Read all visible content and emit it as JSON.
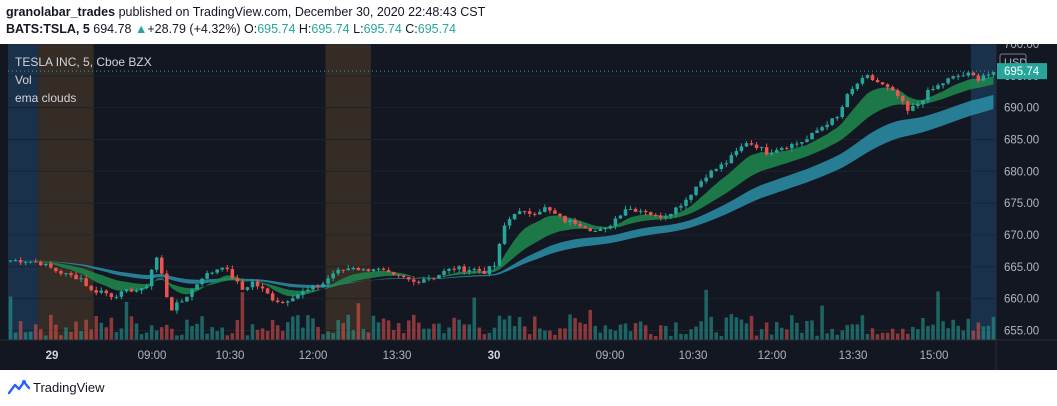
{
  "header": {
    "username": "granolabar_trades",
    "published_text": "published on TradingView.com, December 30, 2020 22:48:43 CST",
    "symbol": "BATS:TSLA, 5",
    "last": "694.78",
    "change_arrow": "▲",
    "change": "+28.79 (+4.32%)",
    "o_label": "O:",
    "o_value": "695.74",
    "h_label": "H:",
    "h_value": "695.74",
    "l_label": "L:",
    "l_value": "695.74",
    "c_label": "C:",
    "c_value": "695.74"
  },
  "legend": {
    "title": "TESLA INC, 5, Cboe BZX",
    "vol": "Vol",
    "indicator": "ema clouds"
  },
  "footer": {
    "brand": "TradingView"
  },
  "colors": {
    "background": "#131722",
    "up": "#26a69a",
    "down": "#ef5350",
    "fast_cloud": "#1f8a4c",
    "slow_cloud": "#2a8fa8",
    "session_blue": "#1c3450",
    "session_orange": "#3a3026",
    "axis_text": "#b2b5be",
    "price_tag": "#26a69a"
  },
  "chart_data": {
    "type": "candlestick",
    "symbol": "TSLA",
    "interval": "5",
    "ylim": [
      653.5,
      700
    ],
    "y_ticks": [
      "655.00",
      "660.00",
      "665.00",
      "670.00",
      "675.00",
      "680.00",
      "685.00",
      "690.00",
      "695.00",
      "700.00"
    ],
    "x_ticks": [
      "29",
      "09:00",
      "10:30",
      "12:00",
      "13:30",
      "30",
      "09:00",
      "10:30",
      "12:00",
      "13:30",
      "15:00"
    ],
    "currency": "USD",
    "last_price": "695.74",
    "path_points": [
      [
        0,
        666.0
      ],
      [
        3,
        666.0
      ],
      [
        6,
        665.6
      ],
      [
        9,
        664.4
      ],
      [
        11,
        663.8
      ],
      [
        14,
        663.2
      ],
      [
        16,
        661.2
      ],
      [
        18,
        661.2
      ],
      [
        20,
        660.5
      ],
      [
        22,
        660.8
      ],
      [
        24,
        661.4
      ],
      [
        26,
        661.3
      ],
      [
        27,
        662.2
      ],
      [
        28,
        664.6
      ],
      [
        29,
        666.4
      ],
      [
        30,
        663.8
      ],
      [
        31,
        660.4
      ],
      [
        32,
        658.4
      ],
      [
        34,
        659.6
      ],
      [
        36,
        661.4
      ],
      [
        38,
        663.4
      ],
      [
        40,
        664.2
      ],
      [
        42,
        665.2
      ],
      [
        44,
        663.4
      ],
      [
        46,
        661.4
      ],
      [
        48,
        662.6
      ],
      [
        50,
        661.4
      ],
      [
        52,
        660.0
      ],
      [
        54,
        659.4
      ],
      [
        56,
        660.4
      ],
      [
        58,
        661.0
      ],
      [
        60,
        661.6
      ],
      [
        62,
        662.4
      ],
      [
        64,
        664.0
      ],
      [
        66,
        664.5
      ],
      [
        68,
        665.0
      ],
      [
        70,
        664.4
      ],
      [
        72,
        664.8
      ],
      [
        74,
        664.2
      ],
      [
        76,
        663.4
      ],
      [
        78,
        663.2
      ],
      [
        80,
        662.6
      ],
      [
        82,
        663.2
      ],
      [
        84,
        663.4
      ],
      [
        86,
        664.2
      ],
      [
        88,
        664.8
      ],
      [
        90,
        664.6
      ],
      [
        92,
        664.6
      ],
      [
        94,
        664.2
      ],
      [
        96,
        665.2
      ],
      [
        98,
        671.4
      ],
      [
        100,
        673.6
      ],
      [
        102,
        673.4
      ],
      [
        104,
        673.6
      ],
      [
        106,
        674.2
      ],
      [
        108,
        673.2
      ],
      [
        110,
        672.2
      ],
      [
        112,
        672.0
      ],
      [
        114,
        671.4
      ],
      [
        116,
        670.6
      ],
      [
        118,
        670.8
      ],
      [
        120,
        672.6
      ],
      [
        122,
        674.2
      ],
      [
        124,
        674.0
      ],
      [
        126,
        673.8
      ],
      [
        128,
        672.8
      ],
      [
        130,
        673.2
      ],
      [
        132,
        674.2
      ],
      [
        134,
        675.6
      ],
      [
        136,
        677.6
      ],
      [
        138,
        679.4
      ],
      [
        140,
        680.4
      ],
      [
        142,
        681.4
      ],
      [
        144,
        683.0
      ],
      [
        146,
        684.6
      ],
      [
        148,
        684.0
      ],
      [
        150,
        683.0
      ],
      [
        152,
        683.6
      ],
      [
        154,
        684.0
      ],
      [
        156,
        684.4
      ],
      [
        158,
        685.0
      ],
      [
        160,
        686.4
      ],
      [
        162,
        687.6
      ],
      [
        164,
        688.4
      ],
      [
        166,
        691.8
      ],
      [
        168,
        693.8
      ],
      [
        170,
        694.8
      ],
      [
        172,
        694.0
      ],
      [
        174,
        693.0
      ],
      [
        176,
        691.8
      ],
      [
        178,
        689.4
      ],
      [
        180,
        690.6
      ],
      [
        182,
        692.4
      ],
      [
        184,
        693.4
      ],
      [
        186,
        694.4
      ],
      [
        188,
        695.0
      ],
      [
        190,
        695.2
      ],
      [
        192,
        694.6
      ],
      [
        193,
        695.2
      ]
    ]
  }
}
